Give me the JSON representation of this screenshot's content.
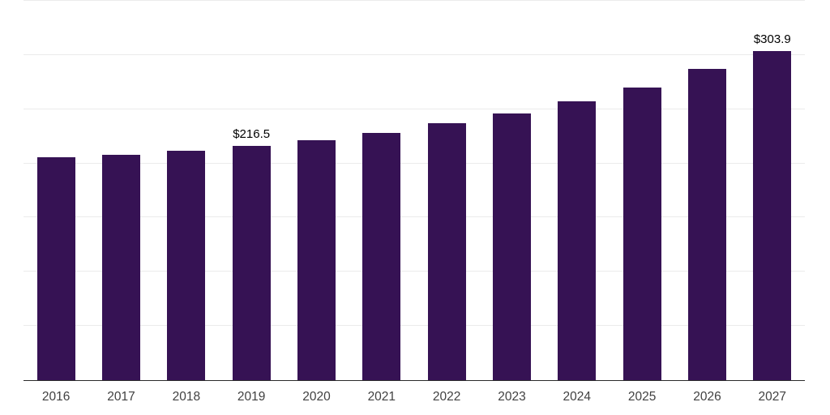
{
  "chart_data": {
    "type": "bar",
    "categories": [
      "2016",
      "2017",
      "2018",
      "2019",
      "2020",
      "2021",
      "2022",
      "2023",
      "2024",
      "2025",
      "2026",
      "2027"
    ],
    "values": [
      205.8,
      208.2,
      211.3,
      216.5,
      221.7,
      228.4,
      237.4,
      246.3,
      257.5,
      270.2,
      287.4,
      303.9
    ],
    "data_labels": {
      "2019": "$216.5",
      "2027": "$303.9"
    },
    "ylim": [
      0,
      350
    ],
    "gridline_interval": 50,
    "grid": true,
    "legend": false,
    "colors": {
      "bar": "#361254",
      "gridline": "#ebebeb",
      "axis_line": "#2b2b2b",
      "tick_label": "#414141",
      "data_label": "#000000",
      "background": "#ffffff"
    }
  }
}
